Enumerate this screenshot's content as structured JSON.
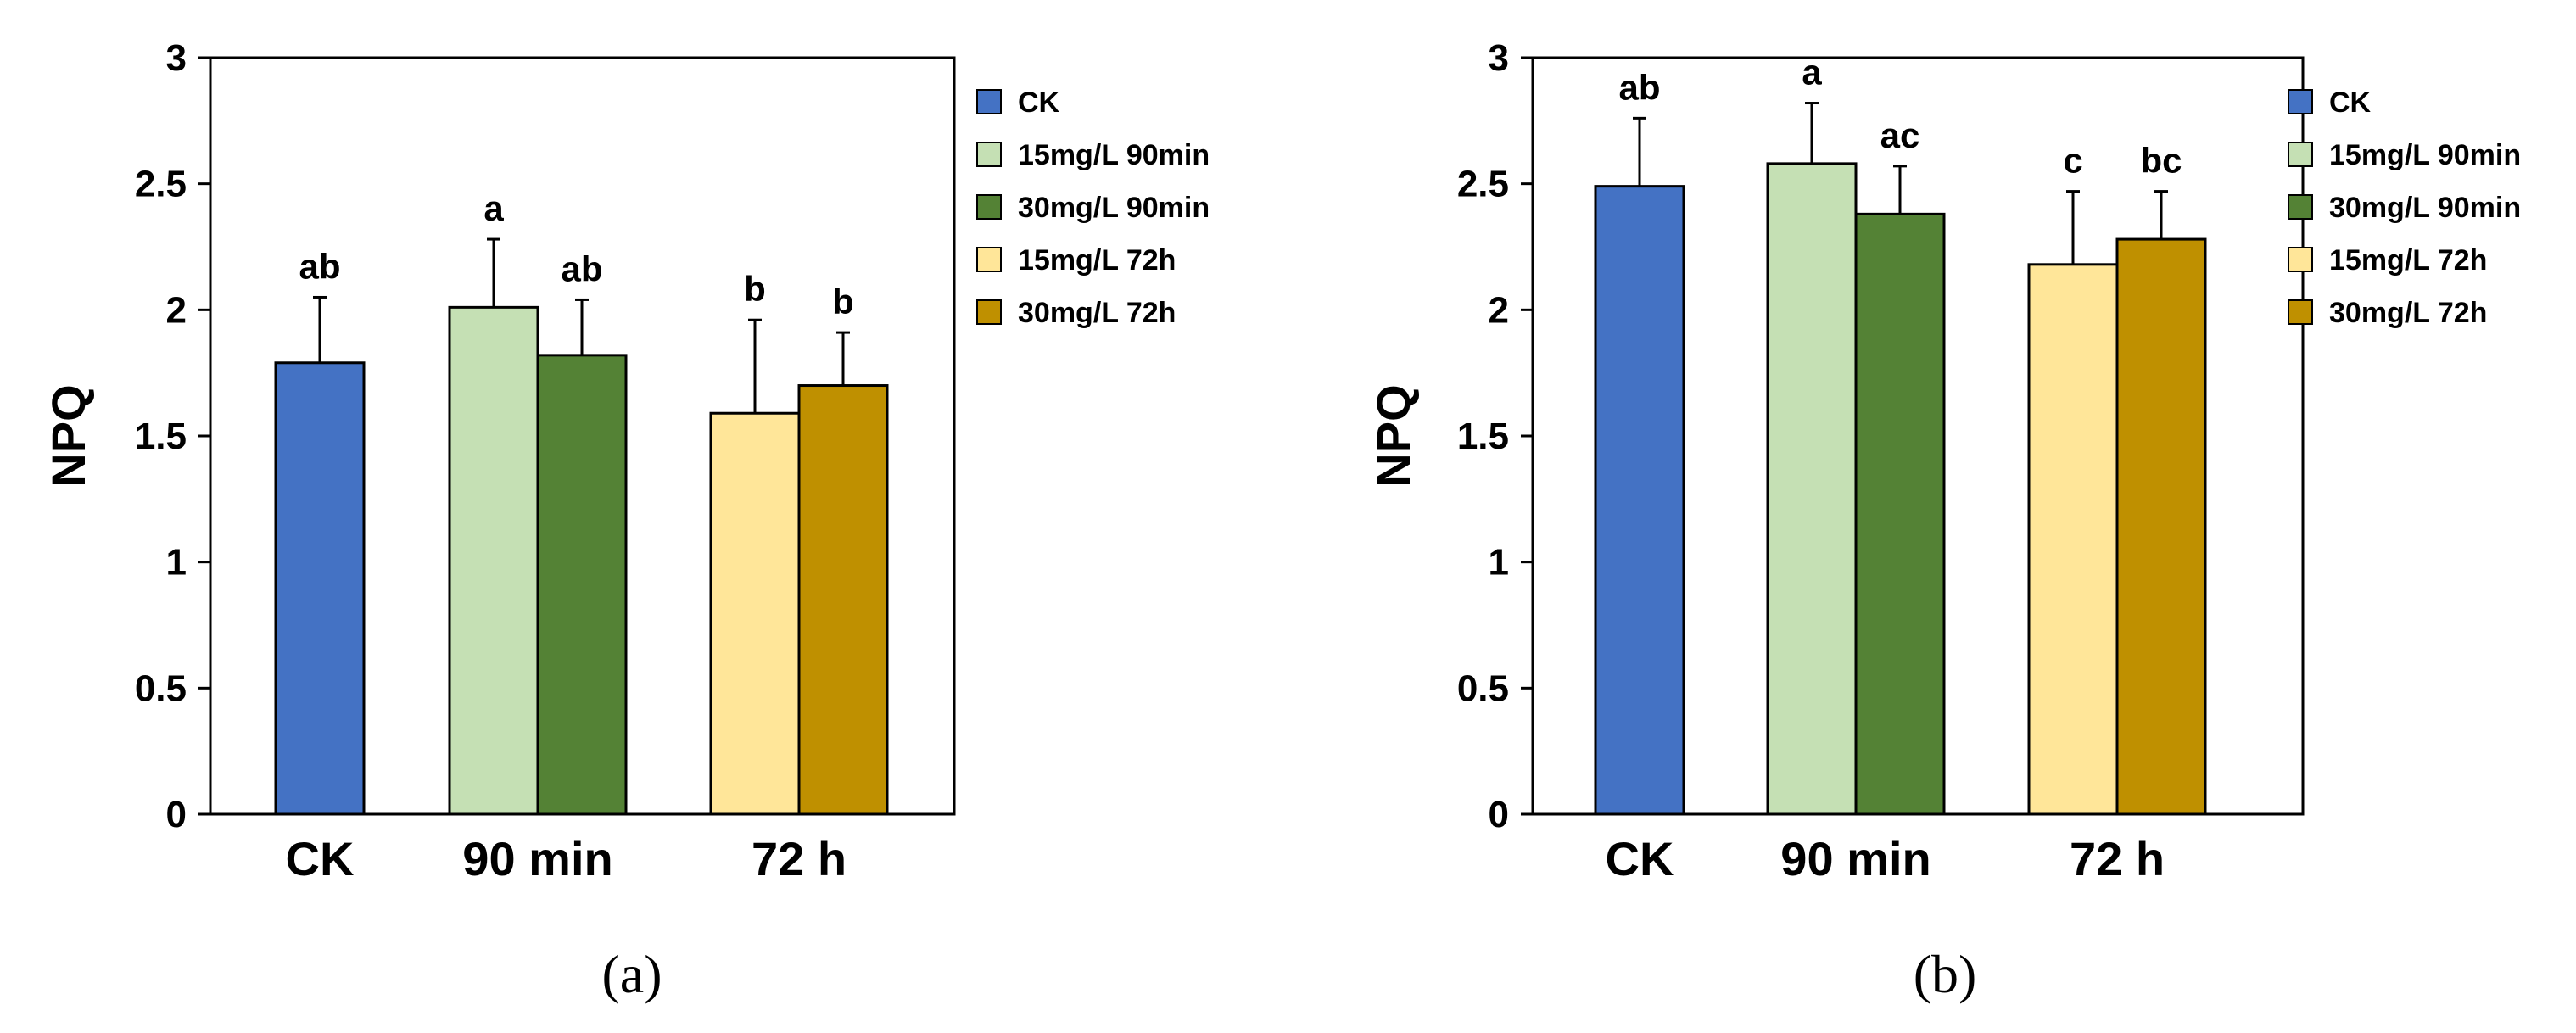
{
  "chart_data": [
    {
      "type": "bar",
      "panel_label": "(a)",
      "ylabel": "NPQ",
      "ylim": [
        0,
        3
      ],
      "yticks": [
        "0",
        "0.5",
        "1",
        "1.5",
        "2",
        "2.5",
        "3"
      ],
      "groups": [
        {
          "label": "CK",
          "bars": [
            0
          ]
        },
        {
          "label": "90 min",
          "bars": [
            1,
            2
          ]
        },
        {
          "label": "72 h",
          "bars": [
            3,
            4
          ]
        }
      ],
      "series": [
        {
          "name": "CK",
          "color": "#4472C4",
          "value": 1.79,
          "error": 0.26,
          "sig": "ab"
        },
        {
          "name": "15mg/L 90min",
          "color": "#C5E0B4",
          "value": 2.01,
          "error": 0.27,
          "sig": "a"
        },
        {
          "name": "30mg/L 90min",
          "color": "#548235",
          "value": 1.82,
          "error": 0.22,
          "sig": "ab"
        },
        {
          "name": "15mg/L 72h",
          "color": "#FFE699",
          "value": 1.59,
          "error": 0.37,
          "sig": "b"
        },
        {
          "name": "30mg/L 72h",
          "color": "#BF9000",
          "value": 1.7,
          "error": 0.21,
          "sig": "b"
        }
      ],
      "legend_position": "right",
      "grid": false
    },
    {
      "type": "bar",
      "panel_label": "(b)",
      "ylabel": "NPQ",
      "ylim": [
        0,
        3
      ],
      "yticks": [
        "0",
        "0.5",
        "1",
        "1.5",
        "2",
        "2.5",
        "3"
      ],
      "groups": [
        {
          "label": "CK",
          "bars": [
            0
          ]
        },
        {
          "label": "90 min",
          "bars": [
            1,
            2
          ]
        },
        {
          "label": "72 h",
          "bars": [
            3,
            4
          ]
        }
      ],
      "series": [
        {
          "name": "CK",
          "color": "#4472C4",
          "value": 2.49,
          "error": 0.27,
          "sig": "ab"
        },
        {
          "name": "15mg/L 90min",
          "color": "#C5E0B4",
          "value": 2.58,
          "error": 0.24,
          "sig": "a"
        },
        {
          "name": "30mg/L 90min",
          "color": "#548235",
          "value": 2.38,
          "error": 0.19,
          "sig": "ac"
        },
        {
          "name": "15mg/L 72h",
          "color": "#FFE699",
          "value": 2.18,
          "error": 0.29,
          "sig": "c"
        },
        {
          "name": "30mg/L 72h",
          "color": "#BF9000",
          "value": 2.28,
          "error": 0.19,
          "sig": "bc"
        }
      ],
      "legend_position": "right",
      "grid": false
    }
  ]
}
